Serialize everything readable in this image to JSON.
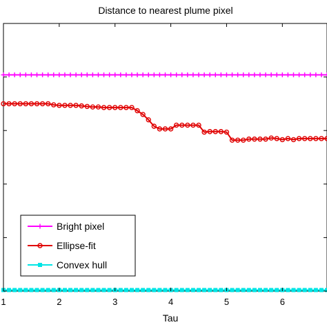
{
  "chart_data": {
    "type": "line",
    "title": "Distance to nearest plume pixel",
    "xlabel": "Tau",
    "ylabel": "",
    "xlim": [
      1,
      6.8
    ],
    "ylim": [
      0,
      5
    ],
    "xticks": [
      1,
      2,
      3,
      4,
      5,
      6
    ],
    "yticks": [
      0,
      1,
      2,
      3,
      4,
      5
    ],
    "grid": false,
    "legend_position": "bottom-left",
    "series": [
      {
        "name": "Bright pixel",
        "color": "#ff00ff",
        "marker": "plus",
        "x": [
          1.0,
          1.1,
          1.2,
          1.3,
          1.4,
          1.5,
          1.6,
          1.7,
          1.8,
          1.9,
          2.0,
          2.1,
          2.2,
          2.3,
          2.4,
          2.5,
          2.6,
          2.7,
          2.8,
          2.9,
          3.0,
          3.1,
          3.2,
          3.3,
          3.4,
          3.5,
          3.6,
          3.7,
          3.8,
          3.9,
          4.0,
          4.1,
          4.2,
          4.3,
          4.4,
          4.5,
          4.6,
          4.7,
          4.8,
          4.9,
          5.0,
          5.1,
          5.2,
          5.3,
          5.4,
          5.5,
          5.6,
          5.7,
          5.8,
          5.9,
          6.0,
          6.1,
          6.2,
          6.3,
          6.4,
          6.5,
          6.6,
          6.7,
          6.8
        ],
        "y": [
          4.04,
          4.04,
          4.04,
          4.04,
          4.04,
          4.04,
          4.04,
          4.04,
          4.04,
          4.04,
          4.04,
          4.04,
          4.04,
          4.04,
          4.04,
          4.04,
          4.04,
          4.04,
          4.04,
          4.04,
          4.04,
          4.04,
          4.04,
          4.04,
          4.04,
          4.04,
          4.04,
          4.04,
          4.04,
          4.04,
          4.04,
          4.04,
          4.04,
          4.04,
          4.04,
          4.04,
          4.04,
          4.04,
          4.04,
          4.04,
          4.04,
          4.04,
          4.04,
          4.04,
          4.04,
          4.04,
          4.04,
          4.04,
          4.04,
          4.04,
          4.04,
          4.04,
          4.04,
          4.04,
          4.04,
          4.04,
          4.04,
          4.04,
          4.04
        ]
      },
      {
        "name": "Ellipse-fit",
        "color": "#e00000",
        "marker": "circle",
        "x": [
          1.0,
          1.1,
          1.2,
          1.3,
          1.4,
          1.5,
          1.6,
          1.7,
          1.8,
          1.9,
          2.0,
          2.1,
          2.2,
          2.3,
          2.4,
          2.5,
          2.6,
          2.7,
          2.8,
          2.9,
          3.0,
          3.1,
          3.2,
          3.3,
          3.4,
          3.5,
          3.6,
          3.7,
          3.8,
          3.9,
          4.0,
          4.1,
          4.2,
          4.3,
          4.4,
          4.5,
          4.6,
          4.7,
          4.8,
          4.9,
          5.0,
          5.1,
          5.2,
          5.3,
          5.4,
          5.5,
          5.6,
          5.7,
          5.8,
          5.9,
          6.0,
          6.1,
          6.2,
          6.3,
          6.4,
          6.5,
          6.6,
          6.7,
          6.8
        ],
        "y": [
          3.5,
          3.5,
          3.5,
          3.5,
          3.5,
          3.5,
          3.5,
          3.5,
          3.5,
          3.48,
          3.47,
          3.47,
          3.47,
          3.47,
          3.46,
          3.45,
          3.44,
          3.44,
          3.43,
          3.43,
          3.43,
          3.43,
          3.43,
          3.43,
          3.37,
          3.3,
          3.2,
          3.08,
          3.03,
          3.03,
          3.03,
          3.1,
          3.1,
          3.1,
          3.1,
          3.1,
          2.97,
          2.98,
          2.98,
          2.98,
          2.97,
          2.82,
          2.82,
          2.82,
          2.84,
          2.84,
          2.84,
          2.84,
          2.86,
          2.85,
          2.83,
          2.85,
          2.83,
          2.85,
          2.85,
          2.85,
          2.85,
          2.85,
          2.85
        ]
      },
      {
        "name": "Convex hull",
        "color": "#00e5e5",
        "marker": "square",
        "x": [
          1.0,
          1.1,
          1.2,
          1.3,
          1.4,
          1.5,
          1.6,
          1.7,
          1.8,
          1.9,
          2.0,
          2.1,
          2.2,
          2.3,
          2.4,
          2.5,
          2.6,
          2.7,
          2.8,
          2.9,
          3.0,
          3.1,
          3.2,
          3.3,
          3.4,
          3.5,
          3.6,
          3.7,
          3.8,
          3.9,
          4.0,
          4.1,
          4.2,
          4.3,
          4.4,
          4.5,
          4.6,
          4.7,
          4.8,
          4.9,
          5.0,
          5.1,
          5.2,
          5.3,
          5.4,
          5.5,
          5.6,
          5.7,
          5.8,
          5.9,
          6.0,
          6.1,
          6.2,
          6.3,
          6.4,
          6.5,
          6.6,
          6.7,
          6.8
        ],
        "y": [
          0.02,
          0.02,
          0.02,
          0.02,
          0.02,
          0.02,
          0.02,
          0.02,
          0.02,
          0.02,
          0.02,
          0.02,
          0.02,
          0.02,
          0.02,
          0.02,
          0.02,
          0.02,
          0.02,
          0.02,
          0.02,
          0.02,
          0.02,
          0.02,
          0.02,
          0.02,
          0.02,
          0.02,
          0.02,
          0.02,
          0.02,
          0.02,
          0.02,
          0.02,
          0.02,
          0.02,
          0.02,
          0.02,
          0.02,
          0.02,
          0.02,
          0.02,
          0.02,
          0.02,
          0.02,
          0.02,
          0.02,
          0.02,
          0.02,
          0.02,
          0.02,
          0.02,
          0.02,
          0.02,
          0.02,
          0.02,
          0.02,
          0.02,
          0.02
        ]
      }
    ]
  }
}
